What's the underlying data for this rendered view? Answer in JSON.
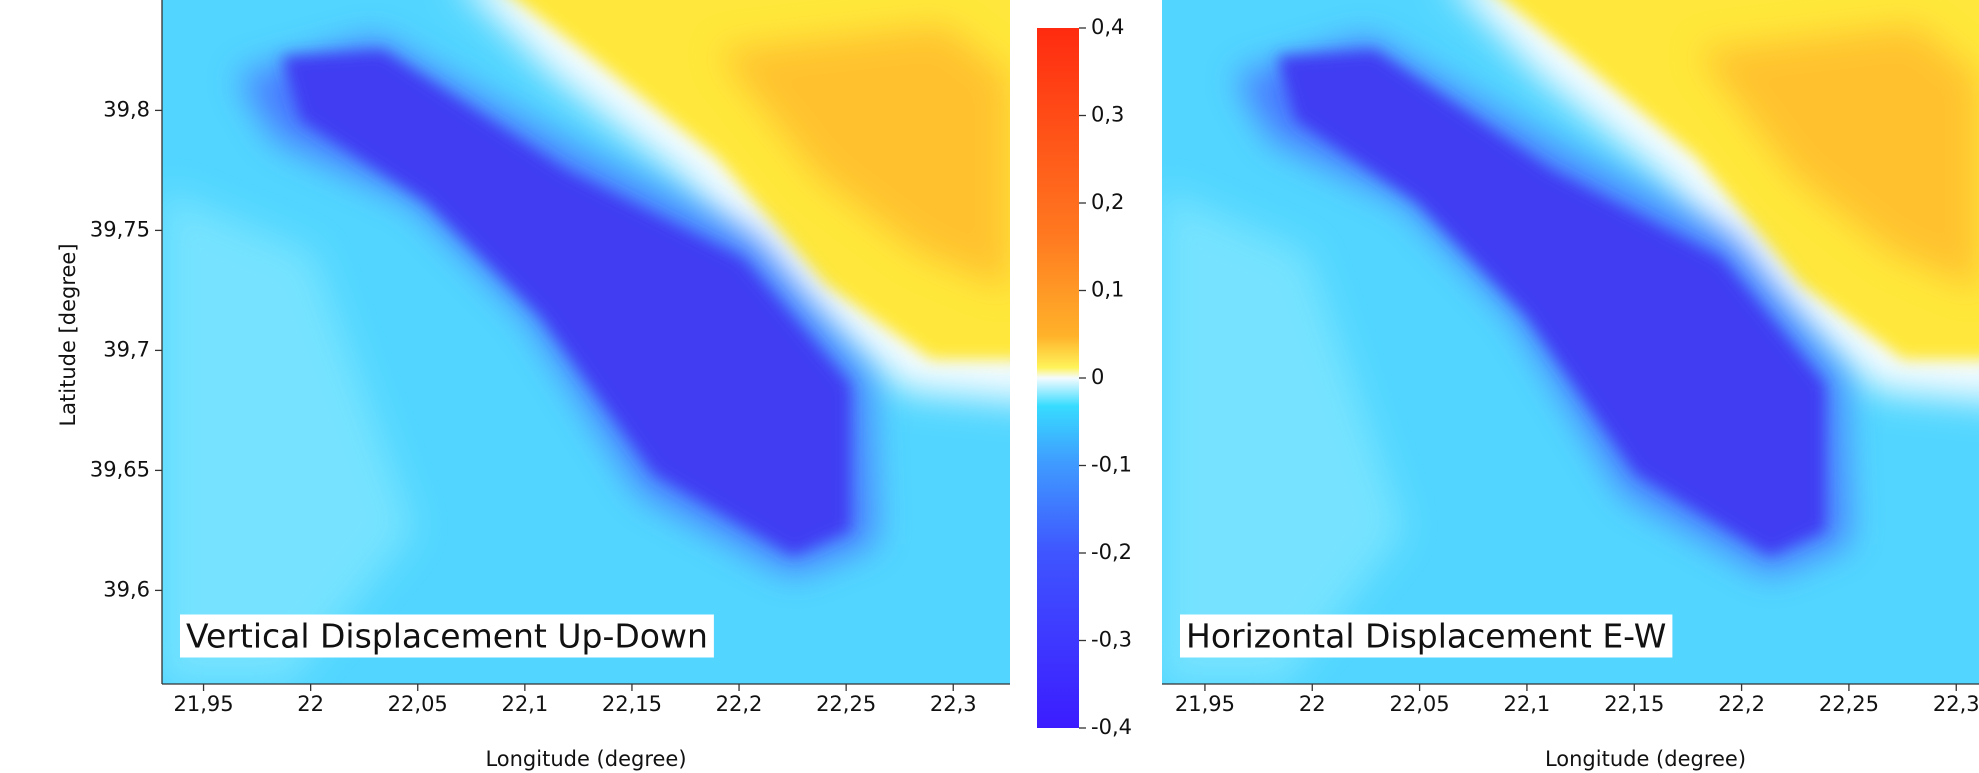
{
  "chart_data": [
    {
      "type": "heatmap",
      "annotation": "Vertical Displacement Up-Down",
      "xlabel": "Longitude (degree)",
      "ylabel": "Latitude [degree]",
      "xlim": [
        21.9306,
        22.3265
      ],
      "xticks": [
        {
          "value": 21.95,
          "label": "21,95"
        },
        22,
        {
          "value": 22.05,
          "label": "22,05"
        },
        {
          "value": 22.1,
          "label": "22,1"
        },
        {
          "value": 22.15,
          "label": "22,15"
        },
        {
          "value": 22.2,
          "label": "22,2"
        },
        {
          "value": 22.25,
          "label": "22,25"
        },
        {
          "value": 22.3,
          "label": "22,3"
        }
      ],
      "ylim": [
        39.561,
        39.846
      ],
      "yticks": [
        {
          "value": 39.6,
          "label": "39,6"
        },
        {
          "value": 39.65,
          "label": "39,65"
        },
        {
          "value": 39.7,
          "label": "39,7"
        },
        {
          "value": 39.75,
          "label": "39,75"
        },
        {
          "value": 39.8,
          "label": "39,8"
        }
      ],
      "colorbar": {
        "ylim": [
          -0.4,
          0.4
        ],
        "yticks": [
          {
            "value": -0.4,
            "label": "-0,4"
          },
          {
            "value": -0.3,
            "label": "-0,3"
          },
          {
            "value": -0.2,
            "label": "-0,2"
          },
          {
            "value": -0.1,
            "label": "-0,1"
          },
          0,
          {
            "value": 0.1,
            "label": "0,1"
          },
          {
            "value": 0.2,
            "label": "0,2"
          },
          {
            "value": 0.3,
            "label": "0,3"
          },
          {
            "value": 0.4,
            "label": "0,4"
          }
        ]
      }
    },
    {
      "type": "heatmap",
      "annotation": "Horizontal Displacement E-W",
      "xlabel": "Longitude (degree)",
      "xlim": [
        21.93,
        22.3106
      ],
      "xticks": [
        {
          "value": 21.95,
          "label": "21,95"
        },
        22,
        {
          "value": 22.05,
          "label": "22,05"
        },
        {
          "value": 22.1,
          "label": "22,1"
        },
        {
          "value": 22.15,
          "label": "22,15"
        },
        {
          "value": 22.2,
          "label": "22,2"
        },
        {
          "value": 22.25,
          "label": "22,25"
        },
        {
          "value": 22.3,
          "label": "22,3"
        }
      ]
    }
  ]
}
